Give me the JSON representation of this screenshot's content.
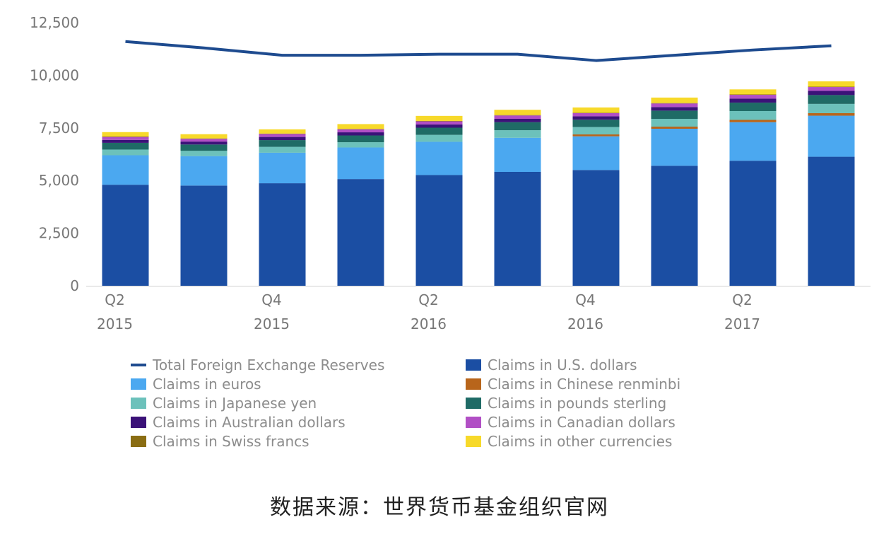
{
  "chart_data": {
    "type": "bar",
    "stacked": true,
    "title": "",
    "xlabel": "",
    "ylabel": "",
    "ylim": [
      0,
      12500
    ],
    "y_ticks": [
      "0",
      "2,500",
      "5,000",
      "7,500",
      "10,000",
      "12,500"
    ],
    "x_tick_labels": [
      [
        "Q2",
        "2015"
      ],
      [
        "Q4",
        "2015"
      ],
      [
        "Q2",
        "2016"
      ],
      [
        "Q4",
        "2016"
      ],
      [
        "Q2",
        "2017"
      ]
    ],
    "categories": [
      "Q2 2015",
      "Q3 2015",
      "Q4 2015",
      "Q1 2016",
      "Q2 2016",
      "Q3 2016",
      "Q4 2016",
      "Q1 2017",
      "Q2 2017",
      "Q3 2017"
    ],
    "legend_position": "bottom",
    "grid": false,
    "series": [
      {
        "name": "Claims in U.S. dollars",
        "color": "#1b4ea3",
        "values": [
          4800,
          4760,
          4870,
          5070,
          5260,
          5410,
          5500,
          5700,
          5940,
          6130
        ]
      },
      {
        "name": "Claims in euros",
        "color": "#4ba8f0",
        "values": [
          1400,
          1400,
          1450,
          1500,
          1580,
          1620,
          1600,
          1760,
          1830,
          1950
        ]
      },
      {
        "name": "Claims in Chinese renminbi",
        "color": "#b8651b",
        "values": [
          0,
          0,
          0,
          0,
          0,
          0,
          90,
          100,
          110,
          120
        ]
      },
      {
        "name": "Claims in Japanese yen",
        "color": "#6cc1bb",
        "values": [
          270,
          250,
          280,
          250,
          330,
          360,
          350,
          370,
          420,
          440
        ]
      },
      {
        "name": "Claims in pounds sterling",
        "color": "#1f6b66",
        "values": [
          320,
          300,
          320,
          320,
          340,
          380,
          350,
          390,
          400,
          420
        ]
      },
      {
        "name": "Claims in Australian dollars",
        "color": "#3b1278",
        "values": [
          140,
          140,
          150,
          150,
          150,
          160,
          160,
          170,
          190,
          200
        ]
      },
      {
        "name": "Claims in Canadian dollars",
        "color": "#b14fc5",
        "values": [
          140,
          130,
          140,
          140,
          150,
          160,
          150,
          170,
          180,
          180
        ]
      },
      {
        "name": "Claims in Swiss francs",
        "color": "#8a6d13",
        "values": [
          20,
          20,
          20,
          20,
          20,
          20,
          20,
          20,
          20,
          20
        ]
      },
      {
        "name": "Claims in other currencies",
        "color": "#f7d92a",
        "values": [
          210,
          200,
          200,
          230,
          240,
          250,
          250,
          260,
          240,
          250
        ]
      }
    ],
    "line_series": {
      "name": "Total Foreign Exchange Reserves",
      "color": "#1e4b8f",
      "values": [
        11600,
        11300,
        10950,
        10950,
        11000,
        11000,
        10700,
        10950,
        11200,
        11400
      ]
    }
  },
  "legend": [
    {
      "label": "Total Foreign Exchange Reserves",
      "color": "#1e4b8f",
      "kind": "line"
    },
    {
      "label": "Claims in U.S. dollars",
      "color": "#1b4ea3",
      "kind": "box"
    },
    {
      "label": "Claims in euros",
      "color": "#4ba8f0",
      "kind": "box"
    },
    {
      "label": "Claims in Chinese renminbi",
      "color": "#b8651b",
      "kind": "box"
    },
    {
      "label": "Claims in Japanese yen",
      "color": "#6cc1bb",
      "kind": "box"
    },
    {
      "label": "Claims in pounds sterling",
      "color": "#1f6b66",
      "kind": "box"
    },
    {
      "label": "Claims in Australian dollars",
      "color": "#3b1278",
      "kind": "box"
    },
    {
      "label": "Claims in Canadian dollars",
      "color": "#b14fc5",
      "kind": "box"
    },
    {
      "label": "Claims in Swiss francs",
      "color": "#8a6d13",
      "kind": "box"
    },
    {
      "label": "Claims in other currencies",
      "color": "#f7d92a",
      "kind": "box"
    }
  ],
  "source_note": "数据来源：世界货币基金组织官网"
}
